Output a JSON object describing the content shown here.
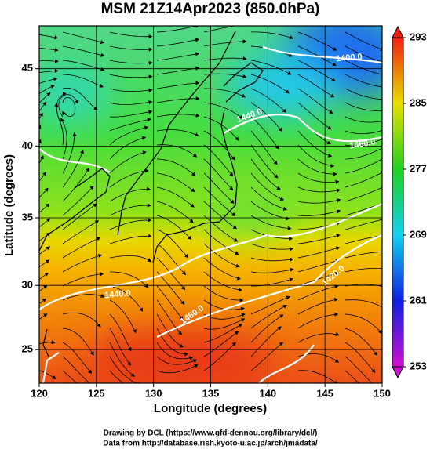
{
  "chart_data": {
    "type": "map",
    "title": "MSM 21Z14Apr2023 (850.0hPa)",
    "x_label": "Longitude (degrees)",
    "y_label": "Latitude  (degrees)",
    "projection": "mercator",
    "xlim": [
      120,
      150
    ],
    "ylim": [
      22.3,
      47.6
    ],
    "xticks": [
      120,
      125,
      130,
      135,
      140,
      145,
      150
    ],
    "yticks": [
      25,
      30,
      35,
      40,
      45
    ],
    "grid": true,
    "contour_labels": [
      "1400.0",
      "1440.0",
      "1460.0",
      "1440.0",
      "1460.0",
      "1420.0"
    ],
    "colorbar": {
      "lim": [
        253,
        293
      ],
      "ticks": [
        253,
        261,
        269,
        277,
        285,
        293
      ]
    },
    "footer": [
      "Drawing by DCL (https://www.gfd-dennou.org/library/dcl/)",
      "Data from http://database.rish.kyoto-u.ac.jp/arch/jmadata/"
    ]
  }
}
